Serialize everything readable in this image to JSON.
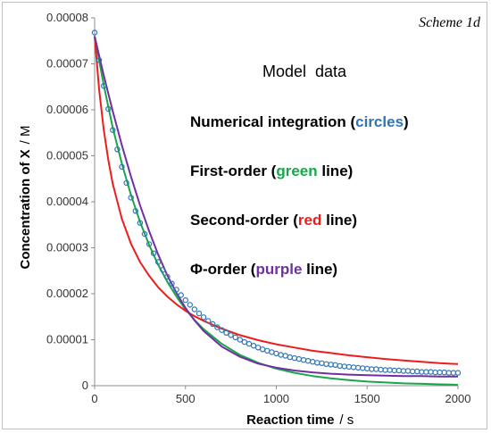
{
  "chart_data": {
    "type": "line",
    "scheme_label": "Scheme 1d",
    "xlabel_main": "Reaction time",
    "xlabel_unit": "/ s",
    "ylabel_main": "Concentration of X",
    "ylabel_unit": "/ M",
    "xlim": [
      0,
      2000
    ],
    "ylim": [
      0,
      8e-05
    ],
    "x_ticks": [
      "0",
      "500",
      "1000",
      "1500",
      "2000"
    ],
    "y_ticks": [
      "0",
      "0.00001",
      "0.00002",
      "0.00003",
      "0.00004",
      "0.00005",
      "0.00006",
      "0.00007",
      "0.00008"
    ],
    "annotations": {
      "header": "Model  data",
      "numerical": {
        "prefix": "Numerical integration (",
        "word": "circles",
        "suffix": ")"
      },
      "first": {
        "prefix": "First-order (",
        "word": "green",
        "suffix": " line)"
      },
      "second": {
        "prefix": "Second-order (",
        "word": "red",
        "suffix": " line)"
      },
      "phi": {
        "prefix": "Φ-order (",
        "word": "purple",
        "suffix": " line)"
      }
    },
    "colors": {
      "circles": "#2e75b6",
      "green": "#1aa64a",
      "red": "#ee1c1c",
      "purple": "#7030a0"
    },
    "series": [
      {
        "style": "circles",
        "x": [
          0,
          25,
          50,
          75,
          100,
          125,
          150,
          175,
          200,
          225,
          250,
          275,
          300,
          325,
          350,
          375,
          400,
          425,
          450,
          475,
          500,
          525,
          550,
          575,
          600,
          625,
          650,
          675,
          700,
          725,
          750,
          775,
          800,
          825,
          850,
          875,
          900,
          925,
          950,
          975,
          1000,
          1025,
          1050,
          1075,
          1100,
          1125,
          1150,
          1175,
          1200,
          1225,
          1250,
          1275,
          1300,
          1325,
          1350,
          1375,
          1400,
          1425,
          1450,
          1475,
          1500,
          1525,
          1550,
          1575,
          1600,
          1625,
          1650,
          1675,
          1700,
          1725,
          1750,
          1775,
          1800,
          1825,
          1850,
          1875,
          1900,
          1925,
          1950,
          1975,
          2000
        ],
        "y": [
          7.68e-05,
          7.08e-05,
          6.52e-05,
          6.02e-05,
          5.56e-05,
          5.14e-05,
          4.76e-05,
          4.41e-05,
          4.09e-05,
          3.8e-05,
          3.54e-05,
          3.3e-05,
          3.08e-05,
          2.88e-05,
          2.69e-05,
          2.52e-05,
          2.37e-05,
          2.22e-05,
          2.09e-05,
          1.97e-05,
          1.86e-05,
          1.76e-05,
          1.66e-05,
          1.57e-05,
          1.49e-05,
          1.41e-05,
          1.34e-05,
          1.27e-05,
          1.21e-05,
          1.15e-05,
          1.1e-05,
          1.05e-05,
          1e-05,
          9.5e-06,
          9.1e-06,
          8.7e-06,
          8.3e-06,
          7.9e-06,
          7.6e-06,
          7.3e-06,
          7e-06,
          6.7e-06,
          6.5e-06,
          6.2e-06,
          6e-06,
          5.8e-06,
          5.6e-06,
          5.4e-06,
          5.2e-06,
          5e-06,
          4.9e-06,
          4.7e-06,
          4.6e-06,
          4.5e-06,
          4.3e-06,
          4.2e-06,
          4.1e-06,
          4e-06,
          3.9e-06,
          3.8e-06,
          3.7e-06,
          3.6e-06,
          3.6e-06,
          3.5e-06,
          3.4e-06,
          3.4e-06,
          3.3e-06,
          3.3e-06,
          3.2e-06,
          3.2e-06,
          3.1e-06,
          3.1e-06,
          3e-06,
          3e-06,
          3e-06,
          2.9e-06,
          2.9e-06,
          2.9e-06,
          2.8e-06,
          2.8e-06,
          2.8e-06
        ]
      },
      {
        "style": "green",
        "x": [
          0,
          50,
          100,
          150,
          200,
          250,
          300,
          350,
          400,
          450,
          500,
          550,
          600,
          700,
          800,
          900,
          1000,
          1100,
          1200,
          1300,
          1400,
          1500,
          1600,
          1700,
          1800,
          1900,
          2000
        ],
        "y": [
          7.6e-05,
          6.54e-05,
          5.61e-05,
          4.83e-05,
          4.15e-05,
          3.56e-05,
          3.06e-05,
          2.63e-05,
          2.26e-05,
          1.94e-05,
          1.66e-05,
          1.43e-05,
          1.23e-05,
          9.1e-06,
          6.7e-06,
          5e-06,
          3.7e-06,
          2.8e-06,
          2.1e-06,
          1.6e-06,
          1.2e-06,
          9e-07,
          7e-07,
          5e-07,
          4e-07,
          3e-07,
          2e-07
        ]
      },
      {
        "style": "red",
        "x": [
          0,
          25,
          50,
          75,
          100,
          150,
          200,
          250,
          300,
          350,
          400,
          450,
          500,
          550,
          600,
          700,
          800,
          900,
          1000,
          1100,
          1200,
          1300,
          1400,
          1500,
          1600,
          1700,
          1800,
          1900,
          2000
        ],
        "y": [
          7.6e-05,
          6.43e-05,
          5.57e-05,
          4.91e-05,
          4.39e-05,
          3.63e-05,
          3.09e-05,
          2.69e-05,
          2.39e-05,
          2.14e-05,
          1.94e-05,
          1.77e-05,
          1.63e-05,
          1.51e-05,
          1.41e-05,
          1.24e-05,
          1.1e-05,
          9.9e-06,
          9e-06,
          8.3e-06,
          7.6e-06,
          7.1e-06,
          6.6e-06,
          6.2e-06,
          5.8e-06,
          5.5e-06,
          5.2e-06,
          4.9e-06,
          4.7e-06
        ]
      },
      {
        "style": "purple",
        "x": [
          0,
          50,
          100,
          150,
          200,
          250,
          300,
          350,
          400,
          450,
          500,
          550,
          600,
          700,
          800,
          900,
          1000,
          1100,
          1200,
          1300,
          1400,
          1500,
          1600,
          1700,
          1800,
          1900,
          2000
        ],
        "y": [
          7.6e-05,
          6.75e-05,
          5.97e-05,
          5.23e-05,
          4.55e-05,
          3.92e-05,
          3.36e-05,
          2.85e-05,
          2.4e-05,
          2.02e-05,
          1.69e-05,
          1.42e-05,
          1.19e-05,
          8.5e-06,
          6.3e-06,
          4.8e-06,
          3.9e-06,
          3.3e-06,
          2.9e-06,
          2.6e-06,
          2.4e-06,
          2.3e-06,
          2.2e-06,
          2.1e-06,
          2.1e-06,
          2e-06,
          2e-06
        ]
      }
    ]
  }
}
